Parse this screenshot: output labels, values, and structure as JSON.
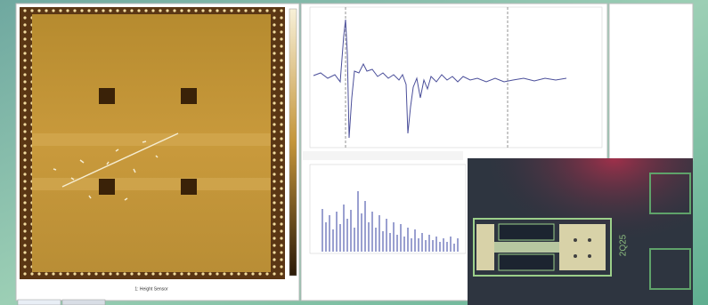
{
  "image_panel": {
    "caption": "1: Height Sensor"
  },
  "photo": {
    "chip_label": "2Q25"
  }
}
